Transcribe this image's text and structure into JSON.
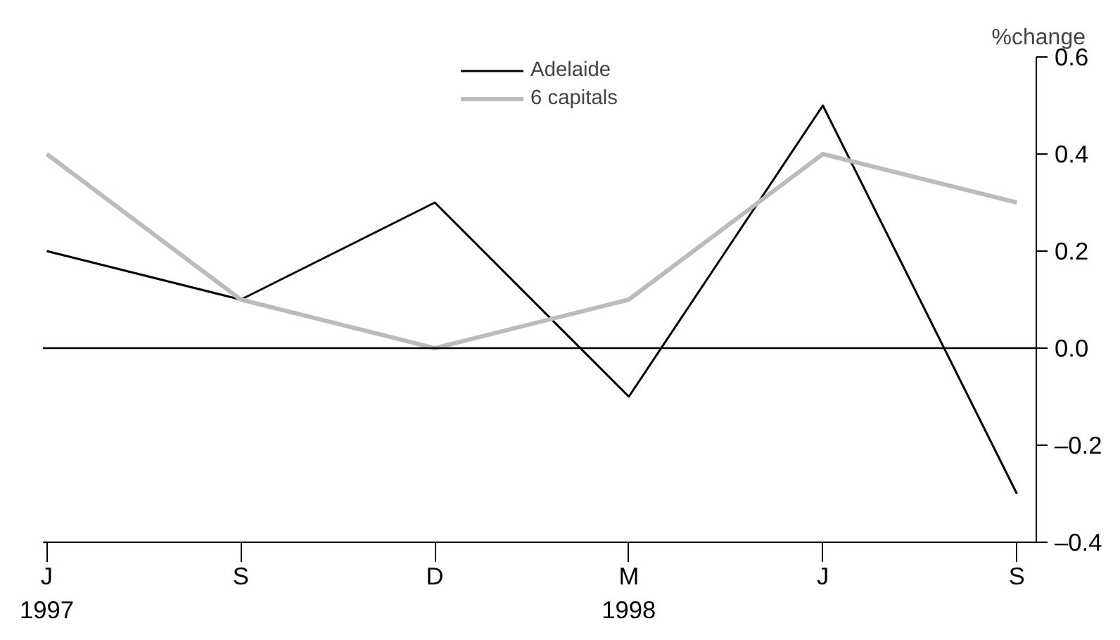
{
  "chart_data": {
    "type": "line",
    "ylabel": "%change",
    "categories": [
      "J\n1997",
      "S",
      "D",
      "M\n1998",
      "J",
      "S"
    ],
    "series": [
      {
        "name": "Adelaide",
        "color": "#000000",
        "values": [
          0.2,
          0.1,
          0.3,
          -0.1,
          0.5,
          -0.3
        ]
      },
      {
        "name": "6 capitals",
        "color": "#bbbbbb",
        "values": [
          0.4,
          0.1,
          0.0,
          0.1,
          0.4,
          0.3
        ]
      }
    ],
    "ylim": [
      -0.4,
      0.6
    ],
    "yticks": [
      {
        "value": -0.4,
        "label": "–0.4"
      },
      {
        "value": -0.2,
        "label": "–0.2"
      },
      {
        "value": 0,
        "label": "0.0"
      },
      0.2,
      0.4,
      0.6
    ],
    "ref_lines": [
      {
        "axis": "y",
        "value": 0,
        "color": "#000000"
      }
    ],
    "grid": false,
    "legend": "top",
    "marker": "none",
    "line_style": "solid"
  }
}
